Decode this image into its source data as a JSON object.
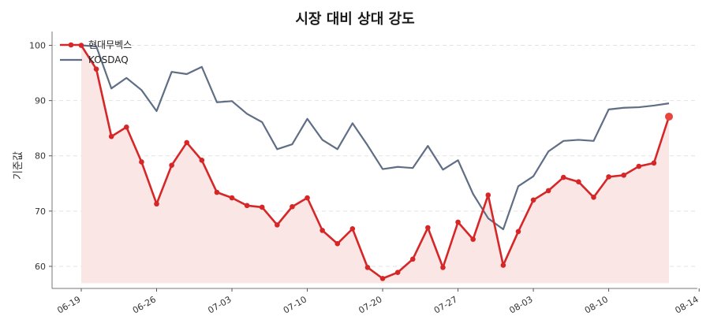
{
  "chart_data": {
    "type": "line",
    "title": "시장 대비 상대 강도",
    "xlabel": "",
    "ylabel": "기준값",
    "ylim": [
      56,
      102.5
    ],
    "yticks": [
      60,
      70,
      80,
      90,
      100
    ],
    "grid": "horizontal dashed",
    "legend_position": "top-left",
    "x_tick_labels": [
      "06-19",
      "06-26",
      "07-03",
      "07-10",
      "07-20",
      "07-27",
      "08-03",
      "08-10",
      "08-14"
    ],
    "x_tick_indices": [
      0,
      5,
      10,
      15,
      20,
      25,
      30,
      35,
      41
    ],
    "colors": {
      "hyundai": "#d62728",
      "kosdaq": "#5f6e85",
      "fill": "#fbe3e3",
      "grid": "#e3e3e3"
    },
    "series": [
      {
        "name": "현대무벡스",
        "role": "stock",
        "values": [
          100,
          95.7,
          83.5,
          85.2,
          78.9,
          71.3,
          78.3,
          82.4,
          79.2,
          73.4,
          72.4,
          71.0,
          70.7,
          67.5,
          70.8,
          72.4,
          66.5,
          64.1,
          66.8,
          59.8,
          57.8,
          58.9,
          61.3,
          67.0,
          59.8,
          68.0,
          64.9,
          72.9,
          60.2,
          66.3,
          72.0,
          73.7,
          76.1,
          75.3,
          72.5,
          76.2,
          76.5,
          78.1,
          78.7,
          87.1
        ]
      },
      {
        "name": "KOSDAQ",
        "role": "index",
        "values": [
          100,
          99.8,
          92.2,
          94.1,
          91.9,
          88.1,
          95.2,
          94.8,
          96.1,
          89.7,
          89.9,
          87.6,
          86.1,
          81.2,
          82.1,
          86.7,
          82.9,
          81.2,
          85.9,
          81.9,
          77.6,
          78.0,
          77.8,
          81.8,
          77.5,
          79.2,
          73.1,
          68.7,
          66.7,
          74.5,
          76.3,
          80.8,
          82.7,
          82.9,
          82.7,
          88.4,
          88.7,
          88.8,
          89.1,
          89.5
        ]
      }
    ]
  }
}
